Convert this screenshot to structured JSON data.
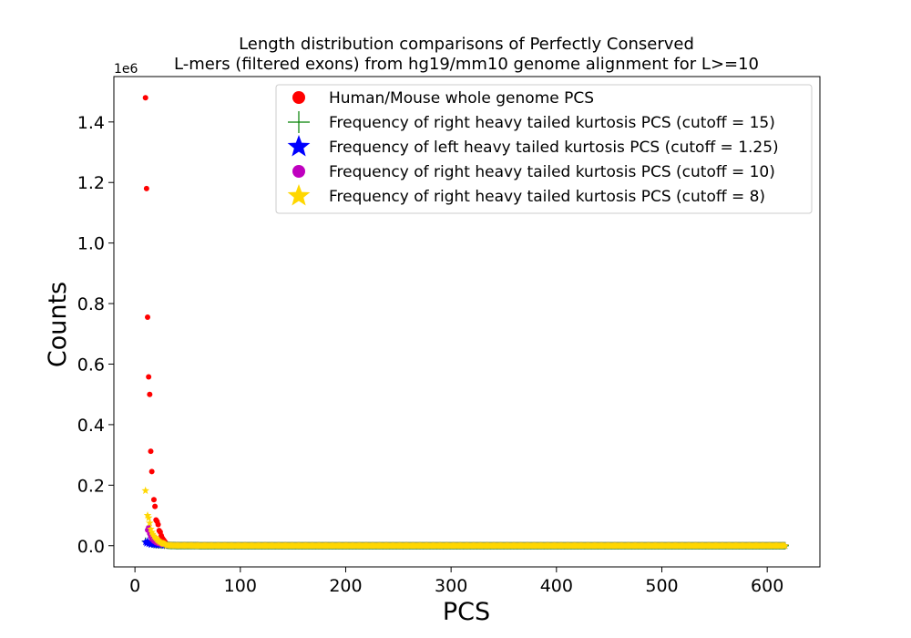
{
  "chart_data": {
    "type": "scatter",
    "title_lines": [
      "Length distribution comparisons of Perfectly Conserved",
      "L-mers (filtered exons) from hg19/mm10 genome alignment for L>=10"
    ],
    "xlabel": "PCS",
    "ylabel": "Counts",
    "y_scale_label": "1e6",
    "xlim": [
      -20,
      650
    ],
    "ylim": [
      -70000,
      1550000
    ],
    "x_ticks": [
      0,
      100,
      200,
      300,
      400,
      500,
      600
    ],
    "y_ticks": [
      0,
      200000,
      400000,
      600000,
      800000,
      1000000,
      1200000,
      1400000
    ],
    "y_tick_labels": [
      "0.0",
      "0.2",
      "0.4",
      "0.6",
      "0.8",
      "1.0",
      "1.2",
      "1.4"
    ],
    "legend_position": "top-right",
    "series": [
      {
        "name": "Human/Mouse whole genome PCS",
        "color": "#ff0000",
        "marker": "circle",
        "tail_start": 30,
        "tail_end": 610,
        "points": [
          [
            10,
            1480000
          ],
          [
            11,
            1180000
          ],
          [
            12,
            755000
          ],
          [
            13,
            558000
          ],
          [
            14,
            500000
          ],
          [
            15,
            312000
          ],
          [
            16,
            245000
          ],
          [
            18,
            152000
          ],
          [
            19,
            130000
          ],
          [
            20,
            85000
          ],
          [
            21,
            80000
          ],
          [
            22,
            70000
          ],
          [
            23,
            50000
          ],
          [
            24,
            45000
          ],
          [
            25,
            33000
          ],
          [
            26,
            25000
          ],
          [
            27,
            20000
          ],
          [
            28,
            15000
          ],
          [
            29,
            10000
          ]
        ]
      },
      {
        "name": "Frequency of right heavy tailed kurtosis PCS (cutoff = 15)",
        "color": "#008000",
        "marker": "plus",
        "tail_start": 30,
        "tail_end": 617,
        "points": [
          [
            10,
            15000
          ],
          [
            12,
            12000
          ],
          [
            14,
            8000
          ],
          [
            16,
            6000
          ],
          [
            18,
            4000
          ],
          [
            20,
            3000
          ],
          [
            22,
            2500
          ],
          [
            25,
            2000
          ],
          [
            28,
            1500
          ]
        ]
      },
      {
        "name": "Frequency of left heavy tailed kurtosis PCS (cutoff = 1.25)",
        "color": "#0000ff",
        "marker": "star",
        "tail_start": 30,
        "tail_end": 617,
        "points": [
          [
            10,
            12000
          ],
          [
            11,
            8000
          ],
          [
            12,
            15000
          ],
          [
            13,
            6000
          ],
          [
            14,
            10000
          ],
          [
            15,
            4000
          ],
          [
            16,
            5000
          ],
          [
            18,
            3000
          ],
          [
            20,
            2000
          ],
          [
            22,
            1500
          ],
          [
            25,
            1000
          ],
          [
            28,
            500
          ]
        ]
      },
      {
        "name": "Frequency of right heavy tailed kurtosis PCS (cutoff = 10)",
        "color": "#bf00bf",
        "marker": "circle",
        "tail_start": 30,
        "tail_end": 600,
        "points": [
          [
            12,
            52000
          ],
          [
            13,
            60000
          ],
          [
            14,
            40000
          ],
          [
            15,
            30000
          ],
          [
            16,
            22000
          ],
          [
            18,
            15000
          ],
          [
            20,
            10000
          ],
          [
            22,
            7000
          ],
          [
            25,
            4000
          ]
        ]
      },
      {
        "name": "Frequency of right heavy tailed kurtosis PCS (cutoff = 8)",
        "color": "#ffd700",
        "marker": "star",
        "tail_start": 30,
        "tail_end": 617,
        "points": [
          [
            10,
            182000
          ],
          [
            12,
            100000
          ],
          [
            13,
            92000
          ],
          [
            14,
            75000
          ],
          [
            15,
            55000
          ],
          [
            16,
            45000
          ],
          [
            17,
            38000
          ],
          [
            18,
            32000
          ],
          [
            19,
            28000
          ],
          [
            20,
            24000
          ],
          [
            21,
            20000
          ],
          [
            22,
            17000
          ],
          [
            23,
            14000
          ],
          [
            24,
            12000
          ],
          [
            25,
            10000
          ],
          [
            26,
            8000
          ],
          [
            27,
            7000
          ],
          [
            28,
            6000
          ],
          [
            29,
            5000
          ]
        ]
      }
    ]
  }
}
